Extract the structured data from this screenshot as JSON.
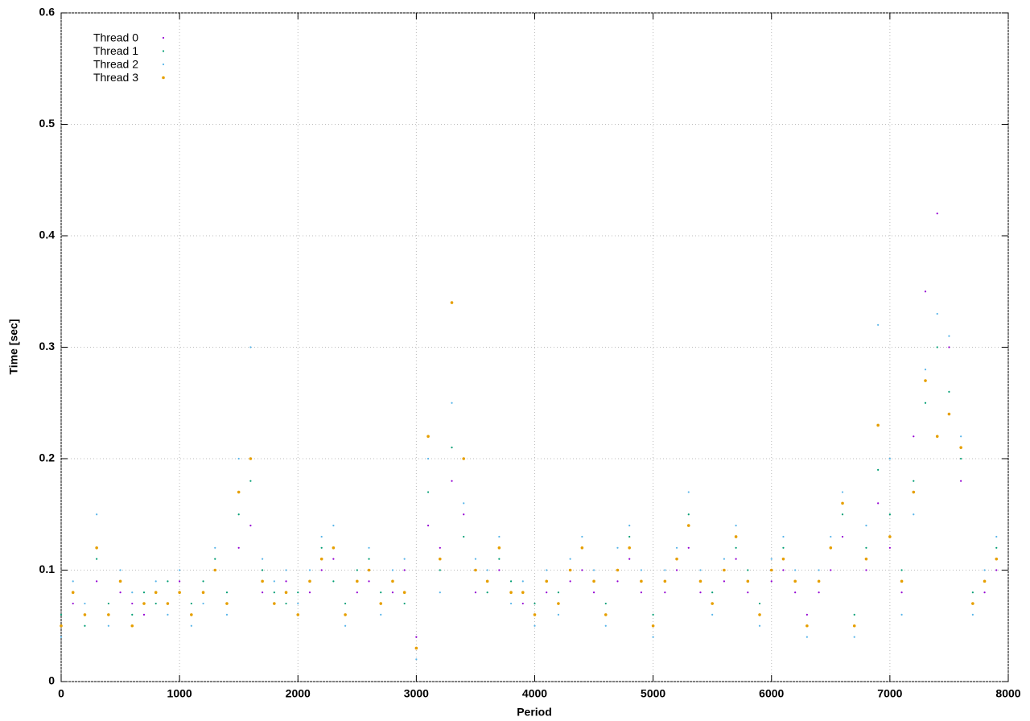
{
  "chart_data": {
    "type": "scatter",
    "x_label": "Period",
    "y_label": "Time [sec]",
    "xlim": [
      0,
      8000
    ],
    "ylim": [
      0,
      0.6
    ],
    "xticks": [
      0,
      1000,
      2000,
      3000,
      4000,
      5000,
      6000,
      7000,
      8000
    ],
    "yticks": [
      0,
      0.1,
      0.2,
      0.3,
      0.4,
      0.5,
      0.6
    ],
    "grid": true,
    "legend": "top-left",
    "x": [
      0,
      100,
      200,
      300,
      400,
      500,
      600,
      700,
      800,
      900,
      1000,
      1100,
      1200,
      1300,
      1400,
      1500,
      1600,
      1700,
      1800,
      1900,
      2000,
      2100,
      2200,
      2300,
      2400,
      2500,
      2600,
      2700,
      2800,
      2900,
      3000,
      3100,
      3200,
      3300,
      3400,
      3500,
      3600,
      3700,
      3800,
      3900,
      4000,
      4100,
      4200,
      4300,
      4400,
      4500,
      4600,
      4700,
      4800,
      4900,
      5000,
      5100,
      5200,
      5300,
      5400,
      5500,
      5600,
      5700,
      5800,
      5900,
      6000,
      6100,
      6200,
      6300,
      6400,
      6500,
      6600,
      6700,
      6800,
      6900,
      7000,
      7100,
      7200,
      7300,
      7400,
      7500,
      7600,
      7700,
      7800,
      7900
    ],
    "series": [
      {
        "name": "Thread 0",
        "color": "#9400d3",
        "values": [
          0.05,
          0.07,
          0.06,
          0.09,
          0.06,
          0.08,
          0.07,
          0.06,
          0.08,
          0.07,
          0.09,
          0.06,
          0.08,
          0.1,
          0.07,
          0.12,
          0.14,
          0.08,
          0.07,
          0.09,
          0.06,
          0.08,
          0.1,
          0.11,
          0.06,
          0.08,
          0.09,
          0.07,
          0.08,
          0.1,
          0.04,
          0.14,
          0.12,
          0.18,
          0.15,
          0.08,
          0.09,
          0.1,
          0.08,
          0.07,
          0.06,
          0.08,
          0.07,
          0.09,
          0.1,
          0.08,
          0.06,
          0.09,
          0.11,
          0.08,
          0.05,
          0.08,
          0.1,
          0.12,
          0.08,
          0.07,
          0.09,
          0.11,
          0.08,
          0.06,
          0.09,
          0.1,
          0.08,
          0.06,
          0.08,
          0.1,
          0.13,
          0.05,
          0.1,
          0.16,
          0.12,
          0.08,
          0.22,
          0.35,
          0.42,
          0.3,
          0.18,
          0.07,
          0.08,
          0.1
        ]
      },
      {
        "name": "Thread 1",
        "color": "#009e73",
        "values": [
          0.06,
          0.08,
          0.05,
          0.11,
          0.07,
          0.09,
          0.06,
          0.08,
          0.07,
          0.09,
          0.08,
          0.07,
          0.09,
          0.11,
          0.08,
          0.15,
          0.18,
          0.1,
          0.08,
          0.07,
          0.08,
          0.09,
          0.12,
          0.09,
          0.07,
          0.1,
          0.11,
          0.08,
          0.09,
          0.07,
          0.03,
          0.17,
          0.1,
          0.21,
          0.13,
          0.1,
          0.08,
          0.11,
          0.09,
          0.08,
          0.07,
          0.09,
          0.08,
          0.1,
          0.12,
          0.09,
          0.07,
          0.1,
          0.13,
          0.09,
          0.06,
          0.09,
          0.11,
          0.15,
          0.09,
          0.08,
          0.1,
          0.12,
          0.1,
          0.07,
          0.1,
          0.12,
          0.09,
          0.05,
          0.09,
          0.12,
          0.15,
          0.06,
          0.12,
          0.19,
          0.15,
          0.1,
          0.18,
          0.25,
          0.3,
          0.26,
          0.2,
          0.08,
          0.09,
          0.12
        ]
      },
      {
        "name": "Thread 2",
        "color": "#56b4e9",
        "values": [
          0.04,
          0.09,
          0.07,
          0.15,
          0.05,
          0.1,
          0.08,
          0.07,
          0.09,
          0.06,
          0.1,
          0.05,
          0.07,
          0.12,
          0.06,
          0.2,
          0.3,
          0.11,
          0.09,
          0.1,
          0.07,
          0.1,
          0.13,
          0.14,
          0.05,
          0.09,
          0.12,
          0.06,
          0.1,
          0.11,
          0.02,
          0.2,
          0.08,
          0.25,
          0.16,
          0.11,
          0.1,
          0.13,
          0.07,
          0.09,
          0.05,
          0.1,
          0.06,
          0.11,
          0.13,
          0.1,
          0.05,
          0.12,
          0.14,
          0.1,
          0.04,
          0.1,
          0.12,
          0.17,
          0.1,
          0.06,
          0.11,
          0.14,
          0.09,
          0.05,
          0.11,
          0.13,
          0.1,
          0.04,
          0.1,
          0.13,
          0.17,
          0.04,
          0.14,
          0.32,
          0.2,
          0.06,
          0.15,
          0.28,
          0.33,
          0.31,
          0.22,
          0.06,
          0.1,
          0.13
        ]
      },
      {
        "name": "Thread 3",
        "color": "#e69f00",
        "values": [
          0.05,
          0.08,
          0.06,
          0.12,
          0.06,
          0.09,
          0.05,
          0.07,
          0.08,
          0.07,
          0.08,
          0.06,
          0.08,
          0.1,
          0.07,
          0.17,
          0.2,
          0.09,
          0.07,
          0.08,
          0.06,
          0.09,
          0.11,
          0.12,
          0.06,
          0.09,
          0.1,
          0.07,
          0.09,
          0.08,
          0.03,
          0.22,
          0.11,
          0.34,
          0.2,
          0.1,
          0.09,
          0.12,
          0.08,
          0.08,
          0.06,
          0.09,
          0.07,
          0.1,
          0.12,
          0.09,
          0.06,
          0.1,
          0.12,
          0.09,
          0.05,
          0.09,
          0.11,
          0.14,
          0.09,
          0.07,
          0.1,
          0.13,
          0.09,
          0.06,
          0.1,
          0.11,
          0.09,
          0.05,
          0.09,
          0.12,
          0.16,
          0.05,
          0.11,
          0.23,
          0.13,
          0.09,
          0.17,
          0.27,
          0.22,
          0.24,
          0.21,
          0.07,
          0.09,
          0.11
        ]
      }
    ]
  }
}
